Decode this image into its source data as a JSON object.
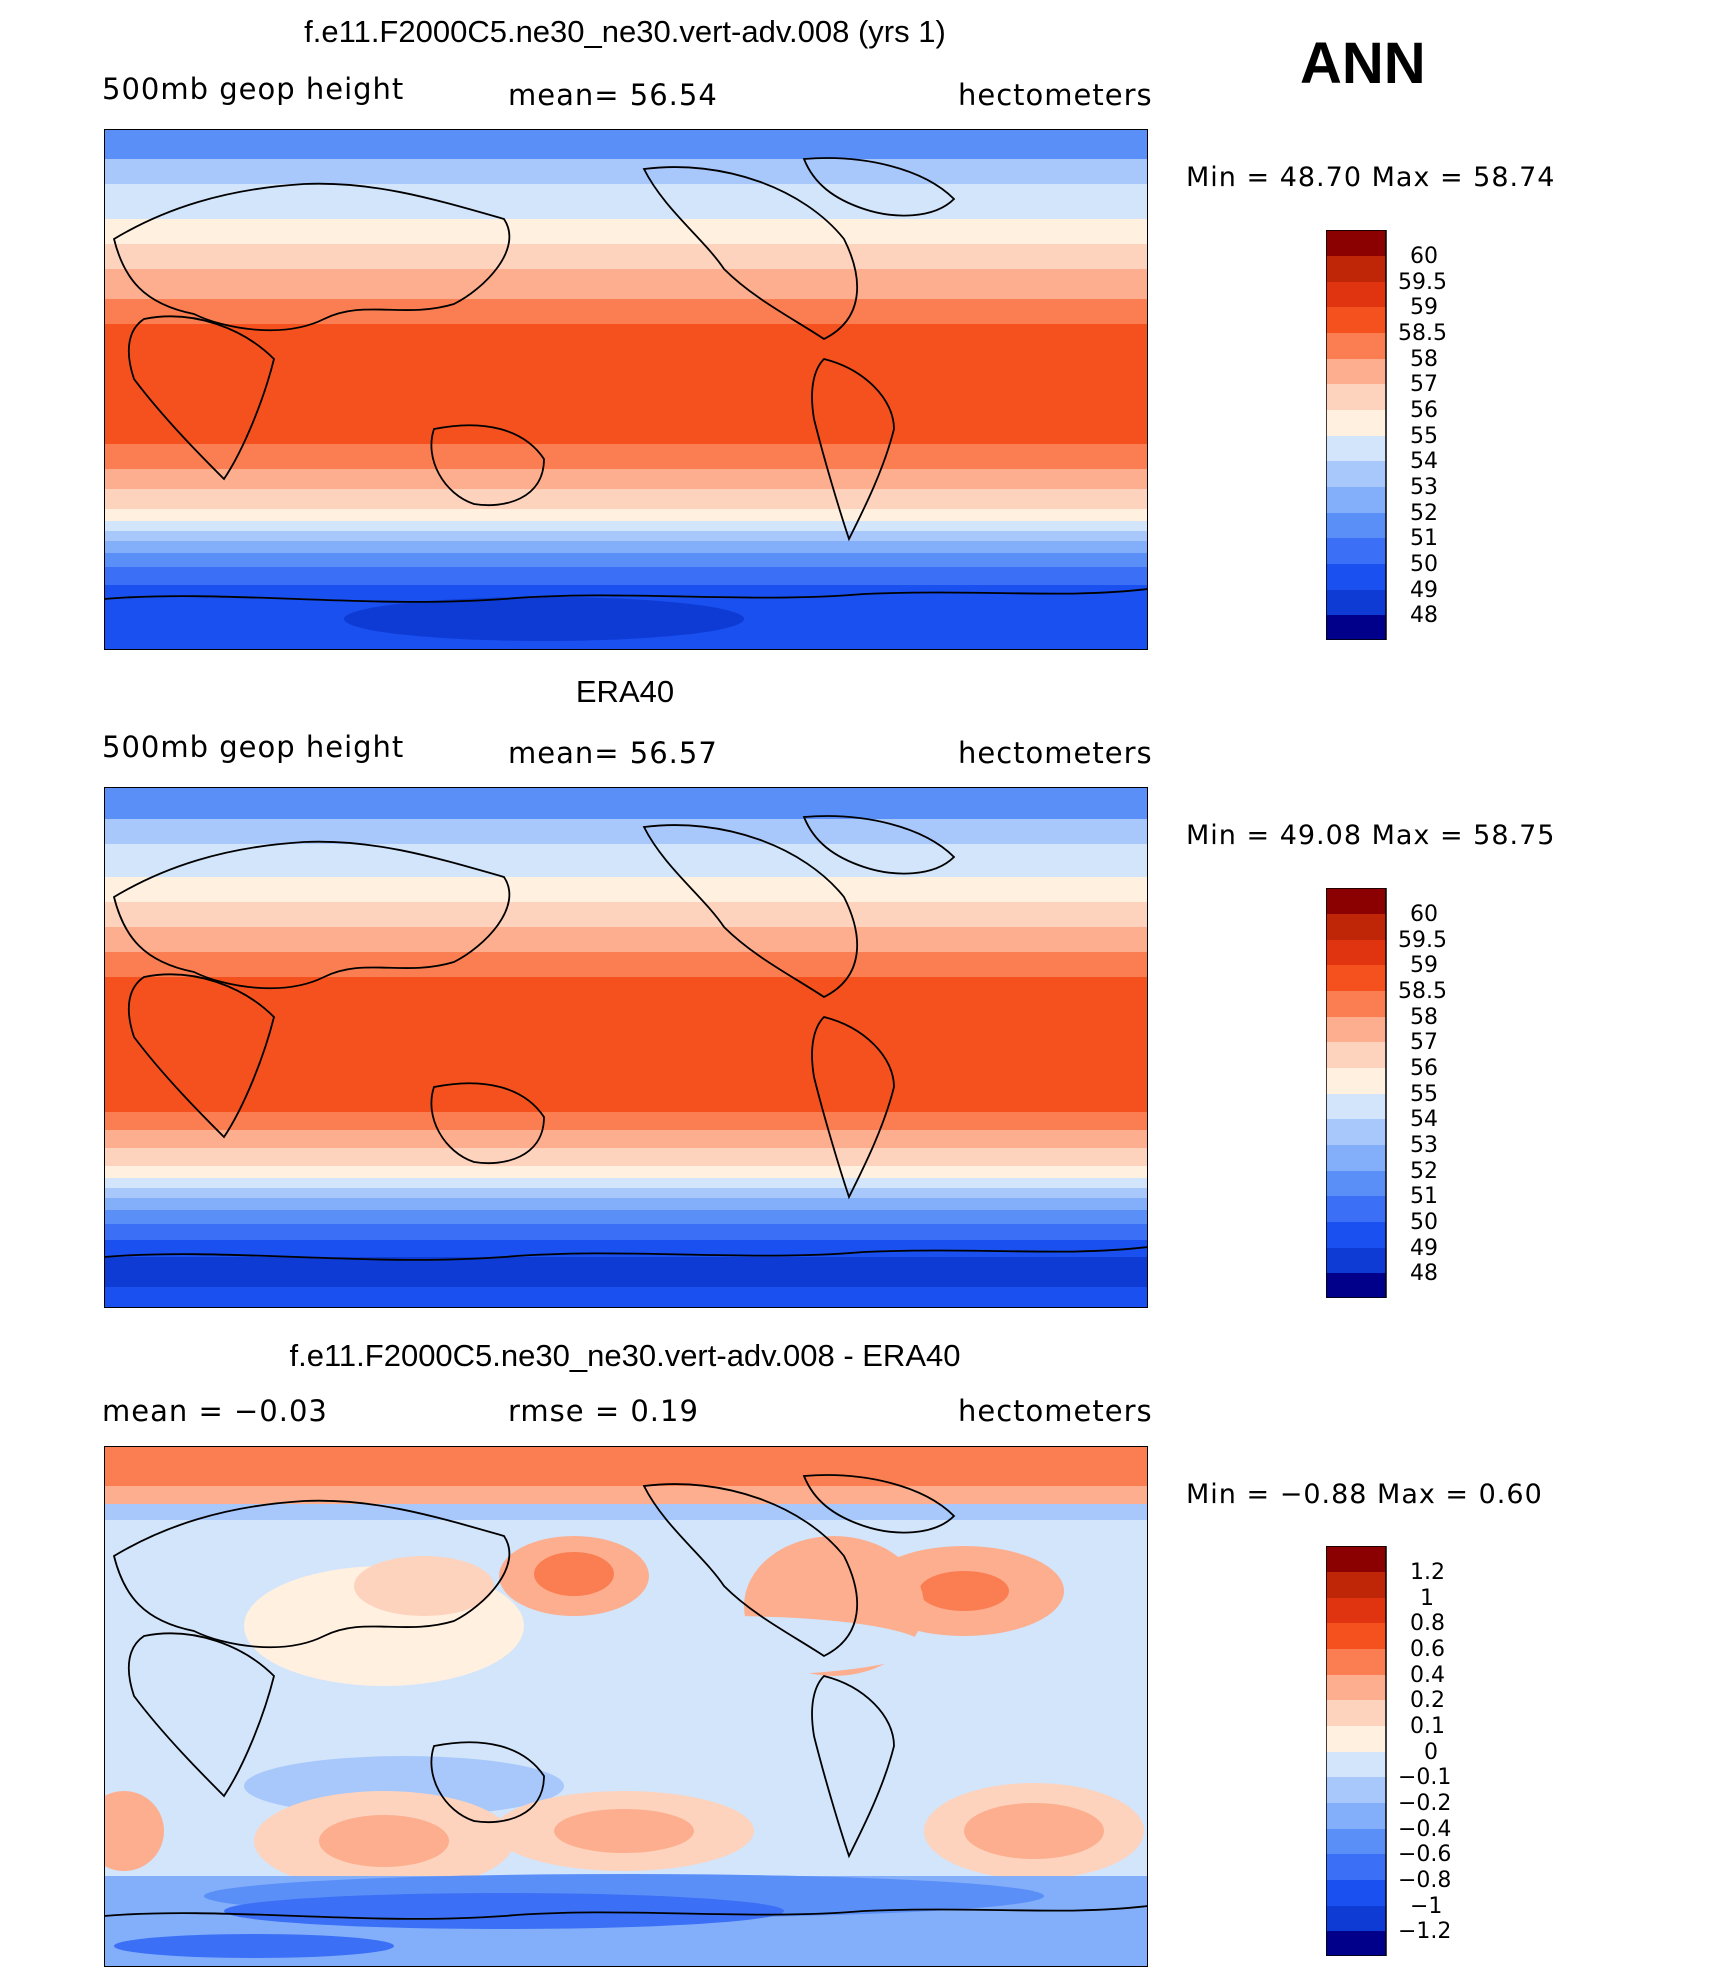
{
  "season": "ANN",
  "panels": [
    {
      "title": "f.e11.F2000C5.ne30_ne30.vert-adv.008 (yrs 1)",
      "left_label": "500mb  geop  height",
      "center_label": "mean=   56.54",
      "right_label": "hectometers",
      "minmax": "Min  =    48.70  Max  =    58.74",
      "colorbar_ticks": [
        "60",
        "59.5",
        "59",
        "58.5",
        "58",
        "57",
        "56",
        "55",
        "54",
        "53",
        "52",
        "51",
        "50",
        "49",
        "48"
      ]
    },
    {
      "title": "ERA40",
      "left_label": "500mb  geop  height",
      "center_label": "mean=   56.57",
      "right_label": "hectometers",
      "minmax": "Min  =    49.08  Max  =    58.75",
      "colorbar_ticks": [
        "60",
        "59.5",
        "59",
        "58.5",
        "58",
        "57",
        "56",
        "55",
        "54",
        "53",
        "52",
        "51",
        "50",
        "49",
        "48"
      ]
    },
    {
      "title": "f.e11.F2000C5.ne30_ne30.vert-adv.008 - ERA40",
      "left_label": "mean  =   −0.03",
      "center_label": "rmse  =    0.19",
      "right_label": "hectometers",
      "minmax": "Min  =   −0.88  Max  =     0.60",
      "colorbar_ticks": [
        "1.2",
        "1",
        "0.8",
        "0.6",
        "0.4",
        "0.2",
        "0.1",
        "0",
        "−0.1",
        "−0.2",
        "−0.4",
        "−0.6",
        "−0.8",
        "−1",
        "−1.2"
      ]
    }
  ],
  "colors": {
    "palette": [
      "#00008b",
      "#0a27a8",
      "#0d3bd4",
      "#1a4ff0",
      "#3a6ff6",
      "#5b8ff8",
      "#82aefa",
      "#a8c8fb",
      "#d2e5fb",
      "#fff0e0",
      "#fdd3bd",
      "#fcae8e",
      "#fb7e52",
      "#f4511e",
      "#e03410",
      "#bf2608",
      "#8b0000"
    ]
  }
}
